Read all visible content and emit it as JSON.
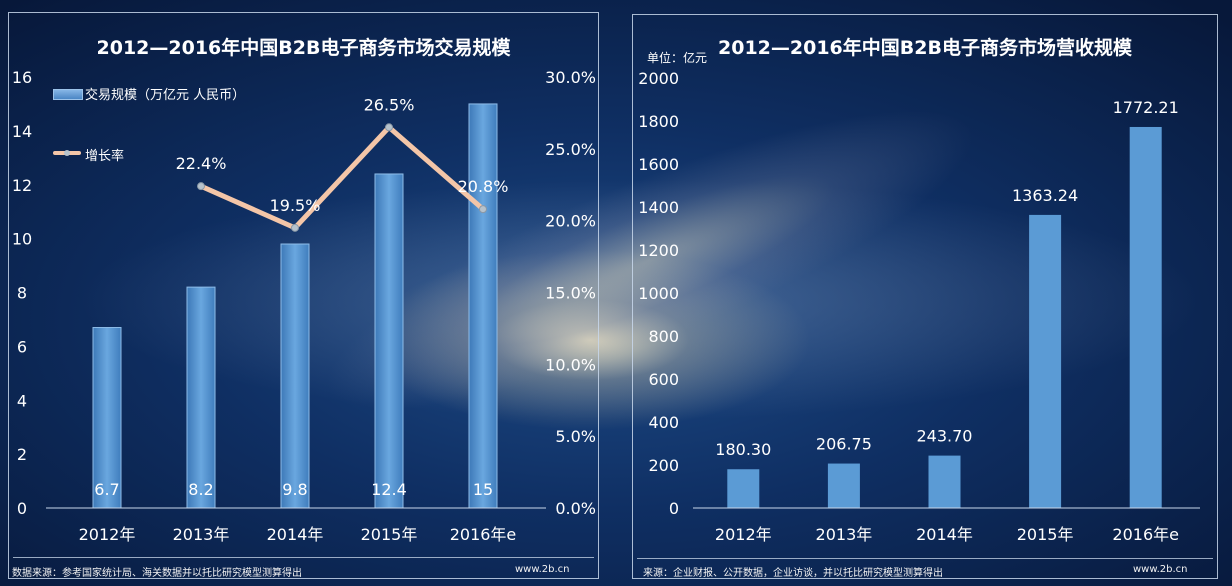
{
  "left_chart": {
    "source": "数据来源：参考国家统计局、海关数据并以托比研究模型测算得出",
    "site": "www.2b.cn",
    "legend": {
      "bar_label": "交易规模（万亿元  人民币）",
      "line_label": "增长率"
    }
  },
  "right_chart": {
    "unit": "单位：亿元",
    "source": "来源：企业财报、公开数据，企业访谈，并以托比研究模型测算得出",
    "site": "www.2b.cn"
  },
  "colors": {
    "bar": "#5b9bd5",
    "line": "#f4c6a8",
    "frame": "#c8d7eb"
  },
  "chart_data": [
    {
      "type": "bar",
      "title": "2012—2016年中国B2B电子商务市场交易规模",
      "categories": [
        "2012年",
        "2013年",
        "2014年",
        "2015年",
        "2016年e"
      ],
      "series": [
        {
          "name": "交易规模（万亿元  人民币）",
          "type": "bar",
          "axis": "left",
          "values": [
            6.7,
            8.2,
            9.8,
            12.4,
            15
          ],
          "labels": [
            "6.7",
            "8.2",
            "9.8",
            "12.4",
            "15"
          ]
        },
        {
          "name": "增长率",
          "type": "line",
          "axis": "right",
          "values": [
            null,
            22.4,
            19.5,
            26.5,
            20.8
          ],
          "labels": [
            "",
            "22.4%",
            "19.5%",
            "26.5%",
            "20.8%"
          ]
        }
      ],
      "ylim": [
        0,
        16
      ],
      "yticks": [
        "0",
        "2",
        "4",
        "6",
        "8",
        "10",
        "12",
        "14",
        "16"
      ],
      "y2lim": [
        0,
        30
      ],
      "y2ticks": [
        "0.0%",
        "5.0%",
        "10.0%",
        "15.0%",
        "20.0%",
        "25.0%",
        "30.0%"
      ],
      "legend": "top-left",
      "grid": false
    },
    {
      "type": "bar",
      "title": "2012—2016年中国B2B电子商务市场营收规模",
      "categories": [
        "2012年",
        "2013年",
        "2014年",
        "2015年",
        "2016年e"
      ],
      "values": [
        180.3,
        206.75,
        243.7,
        1363.24,
        1772.21
      ],
      "labels": [
        "180.30",
        "206.75",
        "243.70",
        "1363.24",
        "1772.21"
      ],
      "ylim": [
        0,
        2000
      ],
      "yticks": [
        "0",
        "200",
        "400",
        "600",
        "800",
        "1000",
        "1200",
        "1400",
        "1600",
        "1800",
        "2000"
      ],
      "grid": false
    }
  ]
}
